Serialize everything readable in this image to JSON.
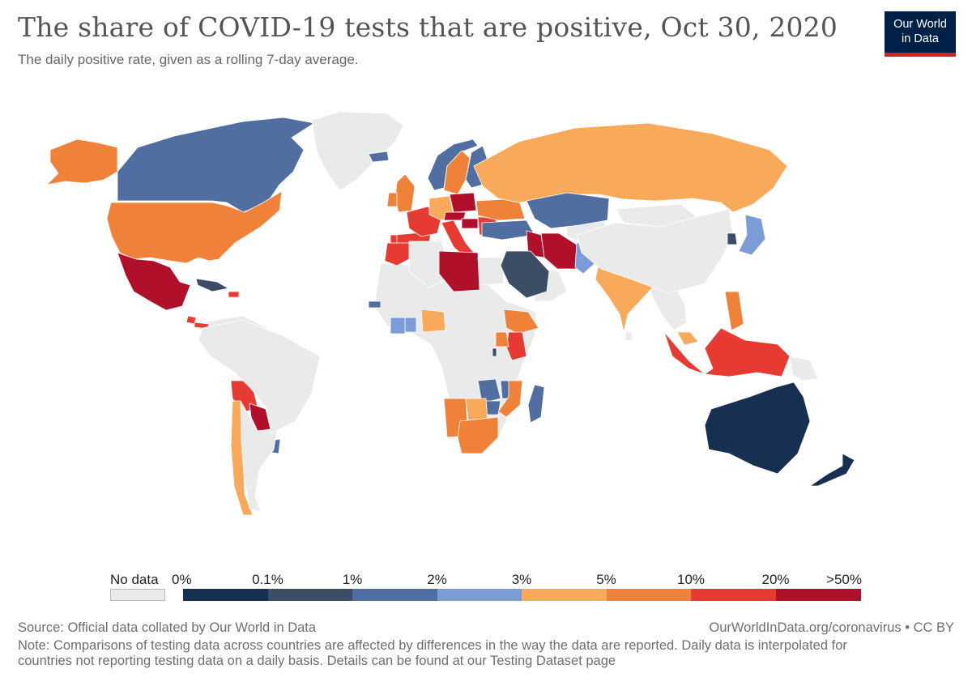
{
  "header": {
    "title": "The share of COVID-19 tests that are positive, Oct 30, 2020",
    "subtitle": "The daily positive rate, given as a rolling 7-day average."
  },
  "logo": {
    "line1": "Our World",
    "line2": "in Data",
    "bg": "#002147",
    "accent": "#ce261e"
  },
  "colors": {
    "no_data": "#eaeaea",
    "border": "#ffffff",
    "ocean": "#ffffff"
  },
  "legend": {
    "no_data_label": "No data",
    "thresholds": [
      "0%",
      "0.1%",
      "1%",
      "2%",
      "3%",
      "5%",
      "10%",
      "20%",
      ">50%"
    ],
    "bins": [
      {
        "range": "0%–0.1%",
        "color": "#172f50"
      },
      {
        "range": "0.1%–1%",
        "color": "#3c4e66"
      },
      {
        "range": "1%–2%",
        "color": "#516ea0"
      },
      {
        "range": "2%–3%",
        "color": "#7b9cd6"
      },
      {
        "range": "3%–5%",
        "color": "#f8a95a"
      },
      {
        "range": "5%–10%",
        "color": "#ef8138"
      },
      {
        "range": "10%–20%",
        "color": "#e63a32"
      },
      {
        "range": "20%–50%",
        "color": "#b0102a"
      }
    ]
  },
  "countries": [
    {
      "name": "Canada",
      "bin": 2
    },
    {
      "name": "Greenland",
      "bin": -1
    },
    {
      "name": "Alaska",
      "bin": 5
    },
    {
      "name": "United States",
      "bin": 5
    },
    {
      "name": "Mexico",
      "bin": 7
    },
    {
      "name": "Cuba",
      "bin": 1
    },
    {
      "name": "Dominican Republic",
      "bin": 6
    },
    {
      "name": "Panama",
      "bin": 6
    },
    {
      "name": "Costa Rica",
      "bin": 6
    },
    {
      "name": "Bolivia",
      "bin": 6
    },
    {
      "name": "Paraguay",
      "bin": 7
    },
    {
      "name": "Chile",
      "bin": 4
    },
    {
      "name": "Uruguay",
      "bin": 2
    },
    {
      "name": "Argentina",
      "bin": -1
    },
    {
      "name": "Brazil",
      "bin": -1
    },
    {
      "name": "Iceland",
      "bin": 2
    },
    {
      "name": "Norway",
      "bin": 2
    },
    {
      "name": "Sweden",
      "bin": 5
    },
    {
      "name": "Finland",
      "bin": 2
    },
    {
      "name": "United Kingdom",
      "bin": 5
    },
    {
      "name": "Ireland",
      "bin": 5
    },
    {
      "name": "Spain",
      "bin": 6
    },
    {
      "name": "Portugal",
      "bin": 6
    },
    {
      "name": "France",
      "bin": 6
    },
    {
      "name": "Germany",
      "bin": 4
    },
    {
      "name": "Poland",
      "bin": 7
    },
    {
      "name": "Czechia",
      "bin": 7
    },
    {
      "name": "Italy",
      "bin": 6
    },
    {
      "name": "Hungary",
      "bin": 7
    },
    {
      "name": "Romania",
      "bin": 6
    },
    {
      "name": "Ukraine",
      "bin": 5
    },
    {
      "name": "Russia",
      "bin": 4
    },
    {
      "name": "Turkey",
      "bin": 2
    },
    {
      "name": "Kazakhstan",
      "bin": 2
    },
    {
      "name": "Morocco",
      "bin": 6
    },
    {
      "name": "Algeria",
      "bin": -1
    },
    {
      "name": "Libya",
      "bin": 7
    },
    {
      "name": "Egypt",
      "bin": -1
    },
    {
      "name": "Iraq",
      "bin": 7
    },
    {
      "name": "Iran",
      "bin": 7
    },
    {
      "name": "Saudi Arabia",
      "bin": 1
    },
    {
      "name": "Pakistan",
      "bin": 3
    },
    {
      "name": "India",
      "bin": 4
    },
    {
      "name": "Nepal",
      "bin": 7
    },
    {
      "name": "Bangladesh",
      "bin": 6
    },
    {
      "name": "China",
      "bin": -1
    },
    {
      "name": "Mongolia",
      "bin": -1
    },
    {
      "name": "South Korea",
      "bin": 1
    },
    {
      "name": "Japan",
      "bin": 3
    },
    {
      "name": "Philippines",
      "bin": 5
    },
    {
      "name": "Malaysia",
      "bin": 4
    },
    {
      "name": "Indonesia",
      "bin": 6
    },
    {
      "name": "Papua New Guinea",
      "bin": -1
    },
    {
      "name": "Australia",
      "bin": 0
    },
    {
      "name": "New Zealand",
      "bin": 0
    },
    {
      "name": "Nigeria",
      "bin": 4
    },
    {
      "name": "Ghana",
      "bin": 3
    },
    {
      "name": "Ivory Coast",
      "bin": 3
    },
    {
      "name": "Senegal",
      "bin": 2
    },
    {
      "name": "Ethiopia",
      "bin": 5
    },
    {
      "name": "Kenya",
      "bin": 6
    },
    {
      "name": "Uganda",
      "bin": 5
    },
    {
      "name": "Rwanda",
      "bin": 1
    },
    {
      "name": "Zambia",
      "bin": 2
    },
    {
      "name": "Malawi",
      "bin": 2
    },
    {
      "name": "Mozambique",
      "bin": 5
    },
    {
      "name": "Zimbabwe",
      "bin": 2
    },
    {
      "name": "Namibia",
      "bin": 5
    },
    {
      "name": "Botswana",
      "bin": 4
    },
    {
      "name": "South Africa",
      "bin": 5
    },
    {
      "name": "Madagascar",
      "bin": 2
    }
  ],
  "footer": {
    "source": "Source: Official data collated by Our World in Data",
    "url": "OurWorldInData.org/coronavirus • CC BY",
    "note_line1": "Note: Comparisons of testing data across countries are affected by differences in the way the data are reported. Daily data is interpolated for",
    "note_line2": "countries not reporting testing data on a daily basis. Details can be found at our Testing Dataset page"
  }
}
